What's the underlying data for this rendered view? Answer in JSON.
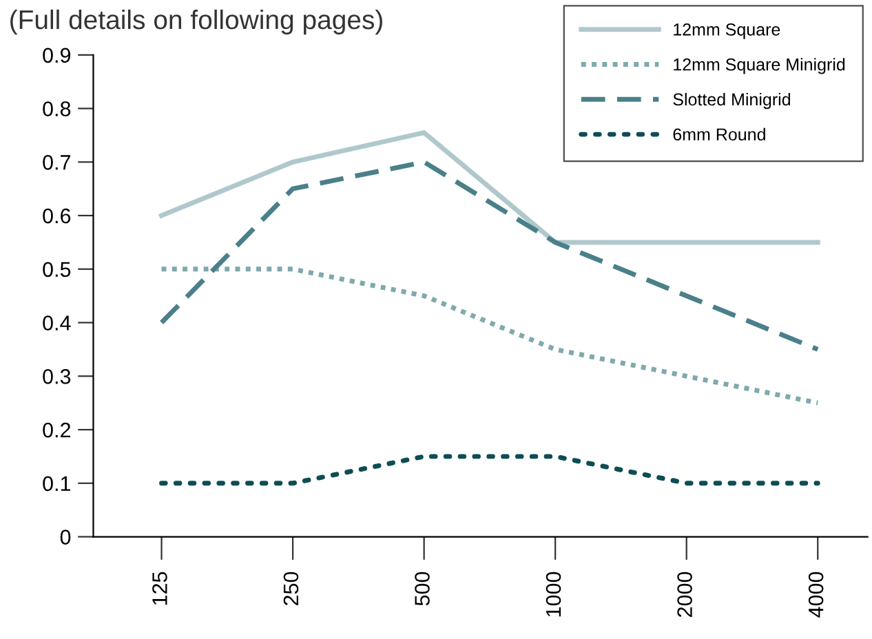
{
  "chart_data": {
    "type": "line",
    "title": "(Full details on following pages)",
    "categories": [
      "125",
      "250",
      "500",
      "1000",
      "2000",
      "4000"
    ],
    "series": [
      {
        "name": "12mm Square",
        "color": "#b0c8cc",
        "line_style": "solid",
        "values": [
          0.6,
          0.7,
          0.755,
          0.55,
          0.55,
          0.55
        ]
      },
      {
        "name": "12mm Square Minigrid",
        "color": "#7fa9ae",
        "line_style": "dotted",
        "values": [
          0.5,
          0.5,
          0.45,
          0.35,
          0.3,
          0.25
        ]
      },
      {
        "name": "Slotted Minigrid",
        "color": "#4a8089",
        "line_style": "dashed",
        "values": [
          0.4,
          0.65,
          0.7,
          0.55,
          0.45,
          0.35
        ]
      },
      {
        "name": "6mm Round",
        "color": "#0e4d55",
        "line_style": "dotted",
        "values": [
          0.1,
          0.1,
          0.15,
          0.15,
          0.1,
          0.1
        ]
      }
    ],
    "ylim": [
      0,
      0.9
    ],
    "yticks": [
      0,
      0.1,
      0.2,
      0.3,
      0.4,
      0.5,
      0.6,
      0.7,
      0.8,
      0.9
    ],
    "grid": false,
    "legend": "top right"
  }
}
